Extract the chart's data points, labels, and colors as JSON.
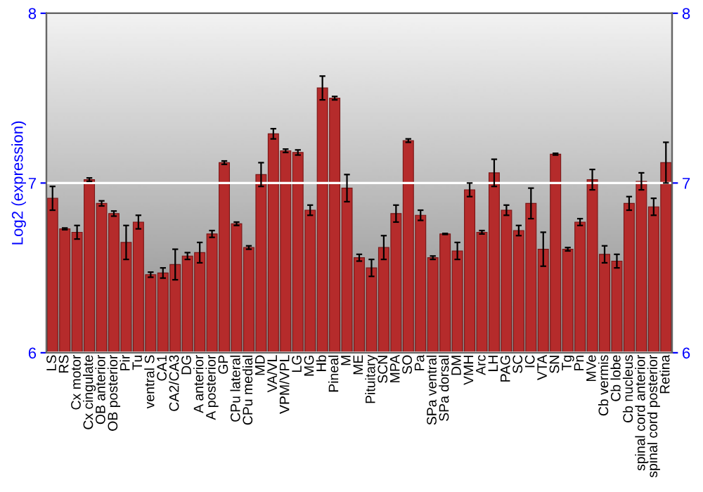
{
  "chart_data": {
    "type": "bar",
    "ylabel": "Log2 (expression)",
    "categories": [
      "LS",
      "RS",
      "Cx motor",
      "Cx cingulate",
      "OB anterior",
      "OB posterior",
      "Pir",
      "Tu",
      "ventral S",
      "CA1",
      "CA2/CA3",
      "DG",
      "A anterior",
      "A posterior",
      "GP",
      "CPu lateral",
      "CPu medial",
      "MD",
      "VA/VL",
      "VPM/VPL",
      "LG",
      "MG",
      "Hb",
      "Pineal",
      "M",
      "ME",
      "Pituitary",
      "SCN",
      "MPA",
      "SO",
      "Pa",
      "SPa ventral",
      "SPa dorsal",
      "DM",
      "VMH",
      "Arc",
      "LH",
      "PAG",
      "SC",
      "IC",
      "VTA",
      "SN",
      "Tg",
      "Pn",
      "MVe",
      "Cb vermis",
      "Cb lobe",
      "Cb nucleus",
      "spinal cord anterior",
      "spinal cord posterior",
      "Retina"
    ],
    "values": [
      6.91,
      6.73,
      6.71,
      7.02,
      6.88,
      6.82,
      6.65,
      6.77,
      6.46,
      6.47,
      6.52,
      6.57,
      6.59,
      6.7,
      7.12,
      6.76,
      6.62,
      7.05,
      7.29,
      7.19,
      7.18,
      6.84,
      7.56,
      7.5,
      6.97,
      6.56,
      6.5,
      6.62,
      6.82,
      7.25,
      6.81,
      6.56,
      6.7,
      6.6,
      6.96,
      6.71,
      7.06,
      6.84,
      6.72,
      6.88,
      6.61,
      7.17,
      6.61,
      6.77,
      7.02,
      6.58,
      6.54,
      6.88,
      7.01,
      6.86,
      7.12
    ],
    "errors": [
      0.07,
      0.005,
      0.04,
      0.01,
      0.015,
      0.015,
      0.1,
      0.04,
      0.015,
      0.03,
      0.09,
      0.02,
      0.06,
      0.02,
      0.01,
      0.01,
      0.01,
      0.07,
      0.03,
      0.01,
      0.015,
      0.03,
      0.07,
      0.01,
      0.08,
      0.02,
      0.05,
      0.07,
      0.05,
      0.01,
      0.03,
      0.01,
      0.003,
      0.05,
      0.04,
      0.01,
      0.08,
      0.03,
      0.03,
      0.09,
      0.1,
      0.005,
      0.01,
      0.02,
      0.06,
      0.05,
      0.04,
      0.04,
      0.05,
      0.05,
      0.12
    ],
    "color": "#b52b2b",
    "ylim": [
      6,
      8
    ],
    "yticks": [
      6,
      7,
      8
    ],
    "y2lim": [
      6,
      8
    ],
    "y2ticks": [
      6,
      7,
      8
    ],
    "grid": "y"
  }
}
